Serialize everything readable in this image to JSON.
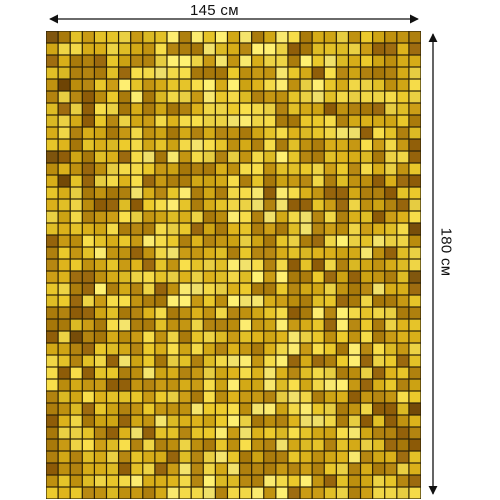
{
  "dimensions": {
    "width_label": "145 см",
    "height_label": "180 см"
  },
  "product": {
    "pattern": "gold-mosaic-tiles",
    "colors": {
      "grout": "#2a2006",
      "tile_dark": "#8a5a0e",
      "tile_mid": "#c19a12",
      "tile_light": "#f2dc4a"
    }
  }
}
